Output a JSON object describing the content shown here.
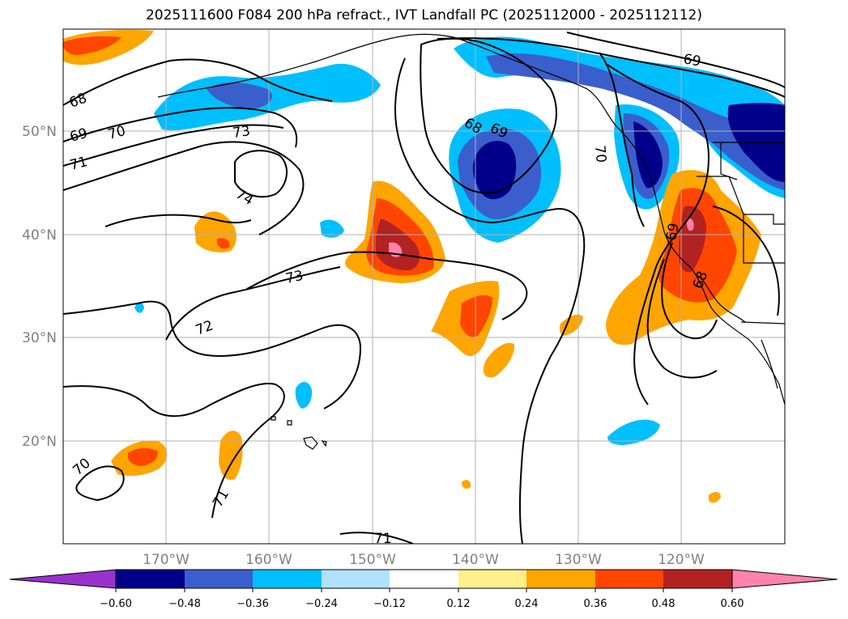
{
  "title": "2025111600 F084 200 hPa refract., IVT Landfall PC (2025112000 - 2025112112)",
  "latitude_labels": [
    "50°N",
    "40°N",
    "30°N",
    "20°N"
  ],
  "longitude_labels": [
    "170°W",
    "160°W",
    "150°W",
    "140°W",
    "130°W",
    "120°W"
  ],
  "contour_labels": [
    "68",
    "69",
    "70",
    "71",
    "73",
    "74",
    "73",
    "72",
    "71",
    "70",
    "71",
    "68",
    "69",
    "69",
    "70",
    "69",
    "68"
  ],
  "colorbar": {
    "ticks": [
      "−0.60",
      "−0.48",
      "−0.36",
      "−0.24",
      "−0.12",
      "0.12",
      "0.24",
      "0.36",
      "0.48",
      "0.60"
    ],
    "colors": [
      "#9932cc",
      "#00008b",
      "#3a5fcd",
      "#00bfff",
      "#b0e2ff",
      "#ffffff",
      "#fff08c",
      "#ffa500",
      "#ff4500",
      "#b22222",
      "#ff82ab"
    ]
  },
  "colors": {
    "pc_deep_negative": "#00008b",
    "pc_mid_negative": "#3a5fcd",
    "pc_light_negative": "#00bfff",
    "pc_low_positive": "#ffa500",
    "pc_mid_positive": "#ff4500",
    "pc_high_positive": "#b22222",
    "pc_extreme_positive": "#ff82ab"
  }
}
